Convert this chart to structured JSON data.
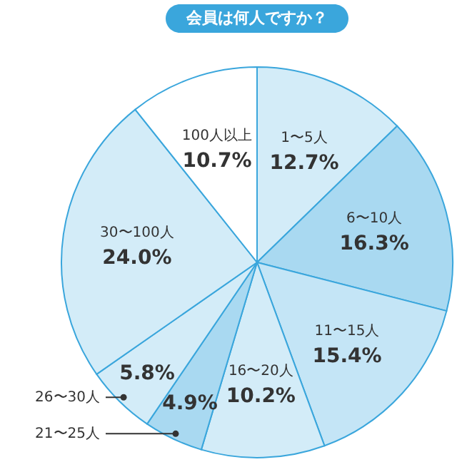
{
  "chart_data": {
    "type": "pie",
    "title": "会員は何人ですか？",
    "categories": [
      "1〜5人",
      "6〜10人",
      "11〜15人",
      "16〜20人",
      "21〜25人",
      "26〜30人",
      "30〜100人",
      "100人以上"
    ],
    "values": [
      12.7,
      16.3,
      15.4,
      10.2,
      4.9,
      5.8,
      24.0,
      10.7
    ],
    "value_labels": [
      "12.7%",
      "16.3%",
      "15.4%",
      "10.2%",
      "4.9%",
      "5.8%",
      "24.0%",
      "10.7%"
    ],
    "colors": [
      "#d3ecf8",
      "#a9d9f1",
      "#c4e5f6",
      "#d3ecf8",
      "#a9d9f1",
      "#d3ecf8",
      "#d3ecf8",
      "#ffffff"
    ]
  }
}
